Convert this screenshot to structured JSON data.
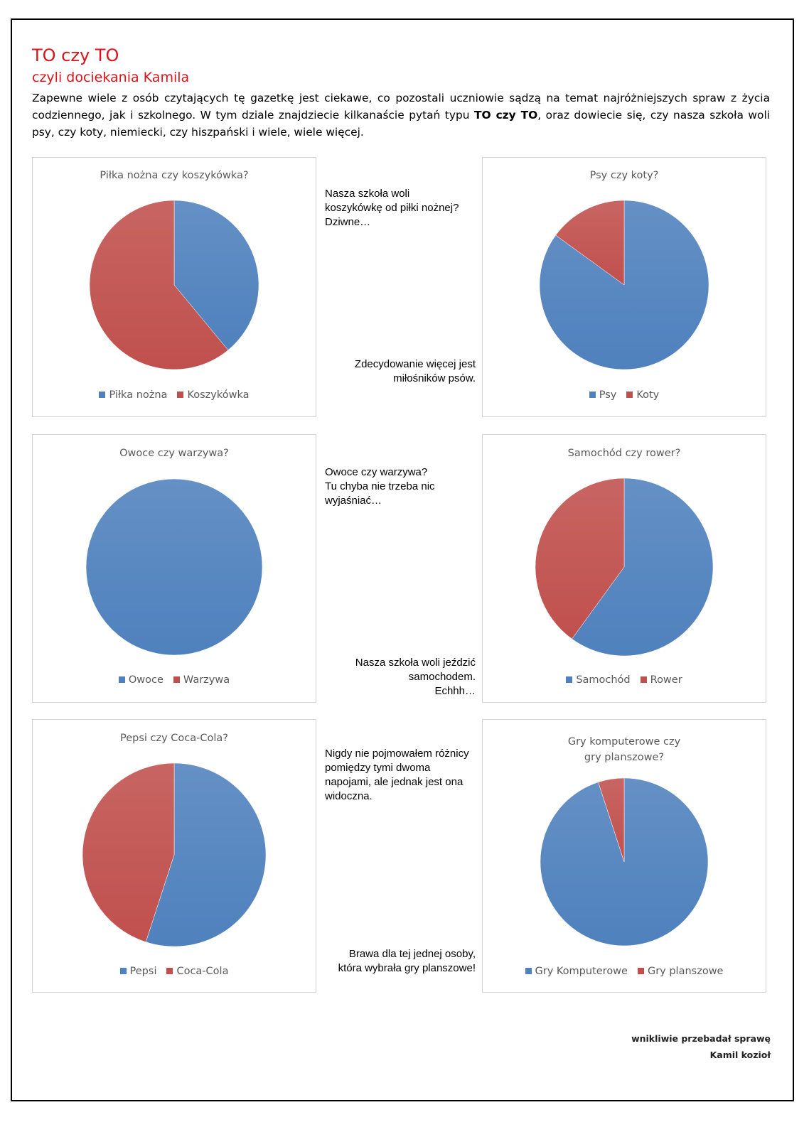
{
  "title": "TO czy TO",
  "subtitle": "czyli dociekania Kamila",
  "intro": {
    "before": "Zapewne wiele z osób czytających tę gazetkę jest ciekawe, co pozostali uczniowie sądzą na temat najróżniejszych spraw z życia codziennego, jak i szkolnego. W tym dziale znajdziecie kilkanaście pytań typu ",
    "bold": "TO czy TO",
    "after": ", oraz dowiecie się, czy nasza szkoła woli psy, czy koty, niemiecki, czy hiszpański i wiele, wiele więcej."
  },
  "colors": {
    "blue": "#4f81bd",
    "red": "#c0504d",
    "title_red": "#d9141a"
  },
  "notes": [
    {
      "text": "Nasza szkoła woli\nkoszykówkę od piłki nożnej?\nDziwne…"
    },
    {
      "text": "Zdecydowanie więcej jest\nmiłośników psów."
    },
    {
      "text": "Owoce czy warzywa?\nTu chyba nie trzeba nic\nwyjaśniać…"
    },
    {
      "text": "Nasza szkoła woli jeździć\nsamochodem.\nEchhh…"
    },
    {
      "text": "Nigdy nie pojmowałem różnicy\npomiędzy tymi dwoma\nnapojami, ale jednak jest ona\nwidoczna."
    },
    {
      "text": "Brawa dla tej jednej osoby,\nktóra wybrała gry planszowe!"
    }
  ],
  "signature": {
    "line1": "wnikliwie przebadał sprawę",
    "line2": "Kamil kozioł"
  },
  "chart_data": [
    {
      "type": "pie",
      "title": "Piłka nożna czy koszykówka?",
      "categories": [
        "Piłka nożna",
        "Koszykówka"
      ],
      "values": [
        39,
        61
      ],
      "legend": "bottom"
    },
    {
      "type": "pie",
      "title": "Psy czy koty?",
      "categories": [
        "Psy",
        "Koty"
      ],
      "values": [
        85,
        15
      ],
      "legend": "bottom"
    },
    {
      "type": "pie",
      "title": "Owoce czy warzywa?",
      "categories": [
        "Owoce",
        "Warzywa"
      ],
      "values": [
        100,
        0
      ],
      "legend": "bottom"
    },
    {
      "type": "pie",
      "title": "Samochód czy rower?",
      "categories": [
        "Samochód",
        "Rower"
      ],
      "values": [
        60,
        40
      ],
      "legend": "bottom"
    },
    {
      "type": "pie",
      "title": "Pepsi czy Coca-Cola?",
      "categories": [
        "Pepsi",
        "Coca-Cola"
      ],
      "values": [
        55,
        45
      ],
      "legend": "bottom"
    },
    {
      "type": "pie",
      "title": "Gry komputerowe czy\ngry planszowe?",
      "categories": [
        "Gry Komputerowe",
        "Gry planszowe"
      ],
      "values": [
        95,
        5
      ],
      "legend": "bottom"
    }
  ]
}
